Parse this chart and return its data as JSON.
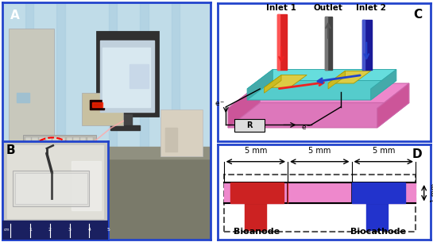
{
  "fig_width": 5.45,
  "fig_height": 3.05,
  "dpi": 100,
  "border_color": "#2244cc",
  "border_lw": 2.0,
  "panel_labels": [
    "A",
    "B",
    "C",
    "D"
  ],
  "panel_label_fontsize": 11,
  "panel_label_color": "black",
  "panel_label_weight": "bold",
  "A_bg_top": "#b8dce8",
  "A_curtain": "#c8e4f0",
  "A_desk": "#8a8a7a",
  "A_tower_color": "#c0c0b8",
  "A_monitor_frame": "#404040",
  "A_monitor_screen": "#c0d8e8",
  "A_keyboard_color": "#b8b8b0",
  "A_instrument_color": "#c8c0a8",
  "A_pump_color": "#c0b8a8",
  "A_rat_color": "#f0f0ee",
  "A_rat_circle_color": "#ff0000",
  "C_pink": "#ee88cc",
  "C_pink_dark": "#cc5599",
  "C_teal": "#55cccc",
  "C_teal_top": "#66dddd",
  "C_teal_side": "#44aaaa",
  "C_teal_dark": "#339999",
  "C_yellow": "#ddcc44",
  "C_red_arrow": "#ee2222",
  "C_blue_arrow": "#2244cc",
  "C_tube_red": "#dd2222",
  "C_tube_gray": "#555555",
  "C_tube_blue": "#3344bb",
  "C_inlet1": "Inlet 1",
  "C_outlet": "Outlet",
  "C_inlet2": "Inlet 2",
  "C_eminus": "e⁻",
  "C_R": "R",
  "D_pink": "#ee88cc",
  "D_red": "#cc2222",
  "D_blue": "#2233cc",
  "D_dashed": "#555555",
  "D_5mm": [
    "5 mm",
    "5 mm",
    "5 mm"
  ],
  "D_1mm": "1 mm",
  "D_bioanode": "Bioanode",
  "D_biocathode": "Biocathode",
  "B_bg": "#d8d8d0",
  "B_chip_bg": "#e8e8e4",
  "B_ruler_bg": "#1a1a50",
  "B_probe": "#333333"
}
